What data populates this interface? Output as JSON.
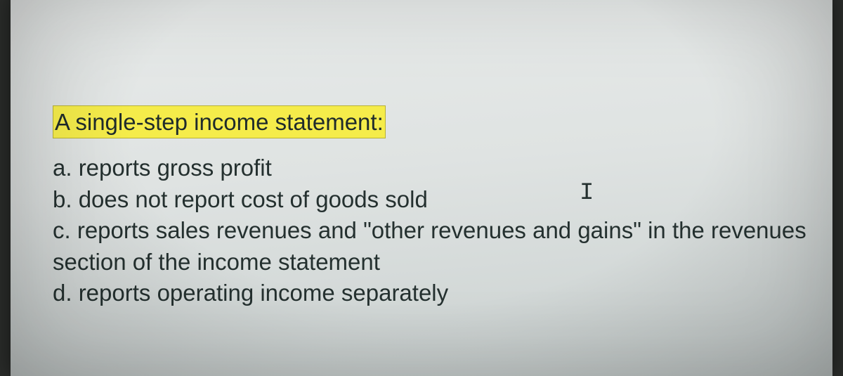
{
  "question": {
    "prompt": "A single-step income statement:",
    "options": [
      "a. reports gross profit",
      "b. does not report cost of goods sold",
      "c. reports sales revenues and \"other revenues and gains\" in the revenues section of the income statement",
      "d. reports operating income separately"
    ],
    "cursor_glyph": "I"
  },
  "style": {
    "highlight_bg": "#f5ec4a",
    "page_bg_top": "#e8ebea",
    "page_bg_bottom": "#c9d0cf",
    "text_color": "#24302f",
    "font_size_pt": 25
  }
}
